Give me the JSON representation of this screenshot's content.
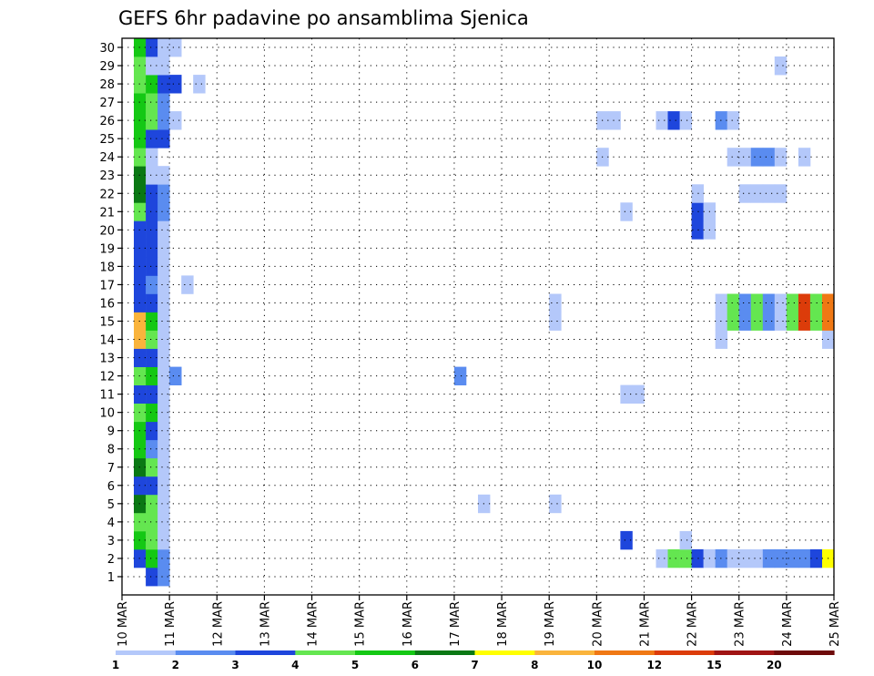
{
  "chart_data": {
    "type": "heatmap",
    "title": "GEFS 6hr padavine po ansamblima Sjenica",
    "y_ticks": [
      "1",
      "2",
      "3",
      "4",
      "5",
      "6",
      "7",
      "8",
      "9",
      "10",
      "11",
      "12",
      "13",
      "14",
      "15",
      "16",
      "17",
      "18",
      "19",
      "20",
      "21",
      "22",
      "23",
      "24",
      "25",
      "26",
      "27",
      "28",
      "29",
      "30"
    ],
    "ylim": [
      0,
      30
    ],
    "x_ticks": [
      "10 MAR",
      "11 MAR",
      "12 MAR",
      "13 MAR",
      "14 MAR",
      "15 MAR",
      "16 MAR",
      "17 MAR",
      "18 MAR",
      "19 MAR",
      "20 MAR",
      "21 MAR",
      "22 MAR",
      "23 MAR",
      "24 MAR",
      "25 MAR"
    ],
    "time_range_days": [
      10,
      25
    ],
    "time_step_hours": 6,
    "grid": "dotted",
    "colorbar": {
      "labels": [
        "1",
        "2",
        "3",
        "4",
        "5",
        "6",
        "7",
        "8",
        "10",
        "12",
        "15",
        "20"
      ],
      "colors": [
        "#b4c8fa",
        "#5a8cf0",
        "#1e46dc",
        "#64e650",
        "#14c814",
        "#0a7814",
        "#ffff00",
        "#fab43c",
        "#f07814",
        "#dc3c0a",
        "#a01414",
        "#6e0a0a"
      ]
    },
    "cells_level_index": {
      "1": [
        [
          10.5,
          3
        ],
        [
          10.75,
          2
        ]
      ],
      "2": [
        [
          10.25,
          3
        ],
        [
          10.5,
          5
        ],
        [
          10.75,
          2
        ],
        [
          21.25,
          1
        ],
        [
          21.5,
          4
        ],
        [
          21.75,
          4
        ],
        [
          22,
          3
        ],
        [
          22.25,
          1
        ],
        [
          22.5,
          2
        ],
        [
          22.75,
          1
        ],
        [
          23,
          1
        ],
        [
          23.25,
          1
        ],
        [
          23.5,
          2
        ],
        [
          23.75,
          2
        ],
        [
          24,
          2
        ],
        [
          24.25,
          2
        ],
        [
          24.5,
          3
        ],
        [
          24.75,
          7
        ]
      ],
      "3": [
        [
          10.25,
          5
        ],
        [
          10.5,
          4
        ],
        [
          10.75,
          1
        ],
        [
          20.5,
          3
        ],
        [
          21.75,
          1
        ]
      ],
      "4": [
        [
          10.25,
          4
        ],
        [
          10.5,
          4
        ],
        [
          10.75,
          1
        ]
      ],
      "5": [
        [
          10.25,
          6
        ],
        [
          10.5,
          4
        ],
        [
          10.75,
          1
        ],
        [
          17.5,
          1
        ],
        [
          19,
          1
        ]
      ],
      "6": [
        [
          10.25,
          3
        ],
        [
          10.5,
          3
        ],
        [
          10.75,
          1
        ]
      ],
      "7": [
        [
          10.25,
          6
        ],
        [
          10.5,
          4
        ],
        [
          10.75,
          1
        ]
      ],
      "8": [
        [
          10.25,
          5
        ],
        [
          10.5,
          2
        ],
        [
          10.75,
          1
        ]
      ],
      "9": [
        [
          10.25,
          5
        ],
        [
          10.5,
          3
        ],
        [
          10.75,
          1
        ]
      ],
      "10": [
        [
          10.25,
          4
        ],
        [
          10.5,
          5
        ],
        [
          10.75,
          1
        ]
      ],
      "11": [
        [
          10.25,
          3
        ],
        [
          10.5,
          3
        ],
        [
          10.75,
          1
        ],
        [
          20.5,
          1
        ],
        [
          20.75,
          1
        ]
      ],
      "12": [
        [
          10.25,
          4
        ],
        [
          10.5,
          5
        ],
        [
          10.75,
          1
        ],
        [
          11,
          2
        ],
        [
          17,
          2
        ]
      ],
      "13": [
        [
          10.25,
          3
        ],
        [
          10.5,
          3
        ],
        [
          10.75,
          1
        ]
      ],
      "14": [
        [
          10.25,
          8
        ],
        [
          10.5,
          4
        ],
        [
          10.75,
          1
        ],
        [
          22.5,
          1
        ],
        [
          24.75,
          1
        ]
      ],
      "15": [
        [
          10.25,
          8
        ],
        [
          10.5,
          5
        ],
        [
          10.75,
          1
        ],
        [
          19,
          1
        ],
        [
          22.5,
          1
        ],
        [
          22.75,
          4
        ],
        [
          23,
          2
        ],
        [
          23.25,
          4
        ],
        [
          23.5,
          2
        ],
        [
          23.75,
          1
        ],
        [
          24,
          4
        ],
        [
          24.25,
          10
        ],
        [
          24.5,
          4
        ],
        [
          24.75,
          9
        ]
      ],
      "16": [
        [
          10.25,
          3
        ],
        [
          10.5,
          3
        ],
        [
          10.75,
          1
        ],
        [
          19,
          1
        ],
        [
          22.5,
          1
        ],
        [
          22.75,
          4
        ],
        [
          23,
          2
        ],
        [
          23.25,
          4
        ],
        [
          23.5,
          2
        ],
        [
          23.75,
          1
        ],
        [
          24,
          4
        ],
        [
          24.25,
          10
        ],
        [
          24.5,
          4
        ],
        [
          24.75,
          9
        ]
      ],
      "17": [
        [
          10.25,
          3
        ],
        [
          10.5,
          2
        ],
        [
          10.75,
          1
        ],
        [
          11.25,
          1
        ]
      ],
      "18": [
        [
          10.25,
          3
        ],
        [
          10.5,
          3
        ],
        [
          10.75,
          1
        ]
      ],
      "19": [
        [
          10.25,
          3
        ],
        [
          10.5,
          3
        ],
        [
          10.75,
          1
        ]
      ],
      "20": [
        [
          10.25,
          3
        ],
        [
          10.5,
          3
        ],
        [
          10.75,
          1
        ],
        [
          22,
          3
        ],
        [
          22.25,
          1
        ]
      ],
      "21": [
        [
          10.25,
          4
        ],
        [
          10.5,
          3
        ],
        [
          10.75,
          2
        ],
        [
          20.5,
          1
        ],
        [
          22,
          3
        ],
        [
          22.25,
          1
        ]
      ],
      "22": [
        [
          10.25,
          6
        ],
        [
          10.5,
          3
        ],
        [
          10.75,
          2
        ],
        [
          22,
          1
        ],
        [
          23,
          1
        ],
        [
          23.25,
          1
        ],
        [
          23.5,
          1
        ],
        [
          23.75,
          1
        ]
      ],
      "23": [
        [
          10.25,
          6
        ],
        [
          10.5,
          1
        ],
        [
          10.75,
          1
        ]
      ],
      "24": [
        [
          10.25,
          4
        ],
        [
          10.5,
          1
        ],
        [
          20,
          1
        ],
        [
          22.75,
          1
        ],
        [
          23,
          1
        ],
        [
          23.25,
          2
        ],
        [
          23.5,
          2
        ],
        [
          23.75,
          1
        ],
        [
          24.25,
          1
        ]
      ],
      "25": [
        [
          10.25,
          5
        ],
        [
          10.5,
          3
        ],
        [
          10.75,
          3
        ]
      ],
      "26": [
        [
          10.25,
          5
        ],
        [
          10.5,
          4
        ],
        [
          10.75,
          2
        ],
        [
          11,
          1
        ],
        [
          20,
          1
        ],
        [
          20.25,
          1
        ],
        [
          21.25,
          1
        ],
        [
          21.5,
          3
        ],
        [
          21.75,
          1
        ],
        [
          22.5,
          2
        ],
        [
          22.75,
          1
        ]
      ],
      "27": [
        [
          10.25,
          5
        ],
        [
          10.5,
          4
        ],
        [
          10.75,
          2
        ]
      ],
      "28": [
        [
          10.25,
          4
        ],
        [
          10.5,
          5
        ],
        [
          10.75,
          3
        ],
        [
          11,
          3
        ],
        [
          11.5,
          1
        ]
      ],
      "29": [
        [
          10.25,
          4
        ],
        [
          10.5,
          1
        ],
        [
          10.75,
          1
        ],
        [
          23.75,
          1
        ]
      ],
      "30": [
        [
          10.25,
          5
        ],
        [
          10.5,
          3
        ],
        [
          10.75,
          1
        ],
        [
          11,
          1
        ]
      ]
    }
  }
}
